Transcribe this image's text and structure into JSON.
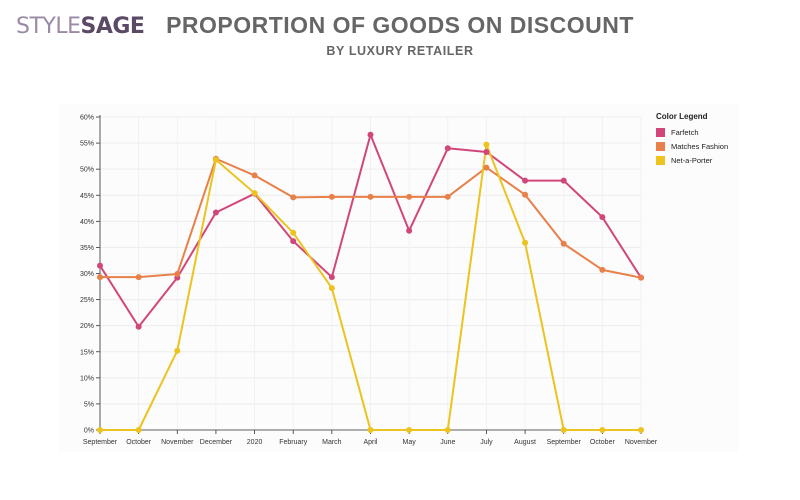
{
  "logo": {
    "part1": "STYLE",
    "part2": "SAGE"
  },
  "header": {
    "title": "PROPORTION OF GOODS ON DISCOUNT",
    "subtitle": "BY LUXURY RETAILER"
  },
  "legend": {
    "title": "Color Legend"
  },
  "chart_data": {
    "type": "line",
    "title": "PROPORTION OF GOODS ON DISCOUNT",
    "subtitle": "BY LUXURY RETAILER",
    "xlabel": "",
    "ylabel": "",
    "categories": [
      "September",
      "October",
      "November",
      "December",
      "2020",
      "February",
      "March",
      "April",
      "May",
      "June",
      "July",
      "August",
      "September",
      "October",
      "November"
    ],
    "yticks": [
      "0%",
      "5%",
      "10%",
      "15%",
      "20%",
      "25%",
      "30%",
      "35%",
      "40%",
      "45%",
      "50%",
      "55%",
      "60%"
    ],
    "ylim": [
      0,
      60
    ],
    "grid": true,
    "legend_position": "top-right",
    "series": [
      {
        "name": "Farfetch",
        "color": "#d1477a",
        "values": [
          31.5,
          19.8,
          29.2,
          41.7,
          45.3,
          36.2,
          29.3,
          56.6,
          38.2,
          54.0,
          53.3,
          47.8,
          47.8,
          40.8,
          29.2
        ]
      },
      {
        "name": "Matches Fashion",
        "color": "#e8804a",
        "values": [
          29.3,
          29.3,
          29.9,
          52.0,
          48.8,
          44.6,
          44.7,
          44.7,
          44.7,
          44.7,
          50.3,
          45.1,
          35.7,
          30.7,
          29.2
        ]
      },
      {
        "name": "Net-a-Porter",
        "color": "#ecc31f",
        "values": [
          0,
          0,
          15.2,
          51.8,
          45.4,
          37.8,
          27.2,
          0,
          0,
          0,
          54.7,
          35.9,
          0,
          0,
          0
        ]
      }
    ]
  }
}
